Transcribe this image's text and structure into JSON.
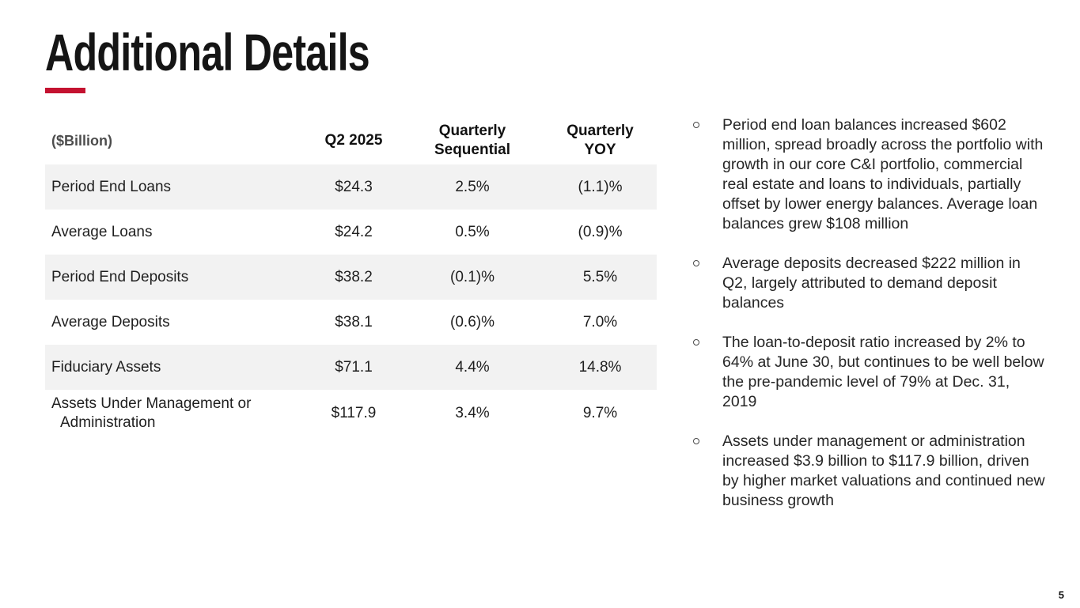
{
  "slide": {
    "title": "Additional Details",
    "page_number": "5",
    "colors": {
      "accent_red": "#C41230",
      "row_stripe_gray": "#F2F2F2",
      "text_dark": "#1f1f1f",
      "unit_label_gray": "#4d4d4d"
    }
  },
  "table": {
    "unit_label": "($Billion)",
    "columns": [
      "Q2 2025",
      "Quarterly Sequential",
      "Quarterly YOY"
    ],
    "rows": [
      {
        "label": "Period End Loans",
        "q2_2025": "$24.3",
        "qtr_sequential": "2.5%",
        "qtr_yoy": "(1.1)%"
      },
      {
        "label": "Average Loans",
        "q2_2025": "$24.2",
        "qtr_sequential": "0.5%",
        "qtr_yoy": "(0.9)%"
      },
      {
        "label": "Period End Deposits",
        "q2_2025": "$38.2",
        "qtr_sequential": "(0.1)%",
        "qtr_yoy": "5.5%"
      },
      {
        "label": "Average Deposits",
        "q2_2025": "$38.1",
        "qtr_sequential": "(0.6)%",
        "qtr_yoy": "7.0%"
      },
      {
        "label": "Fiduciary Assets",
        "q2_2025": "$71.1",
        "qtr_sequential": "4.4%",
        "qtr_yoy": "14.8%"
      },
      {
        "label": "Assets Under Management or Administration",
        "q2_2025": "$117.9",
        "qtr_sequential": "3.4%",
        "qtr_yoy": "9.7%"
      }
    ]
  },
  "bullets": [
    "Period end loan balances increased $602 million, spread broadly across the portfolio with growth in our core C&I portfolio, commercial real estate and loans to individuals, partially offset by lower energy balances. Average loan balances grew $108 million",
    "Average deposits decreased $222 million in Q2, largely attributed to demand deposit balances",
    "The loan-to-deposit ratio increased by 2% to 64% at June 30, but continues to be well below the pre-pandemic level of 79% at Dec. 31, 2019",
    "Assets under management or administration increased $3.9 billion to $117.9 billion, driven by higher market valuations and continued new business growth"
  ]
}
